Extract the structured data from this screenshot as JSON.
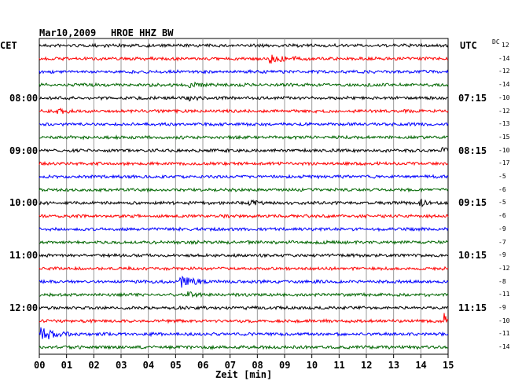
{
  "header": {
    "date": "Mar10,2009",
    "station": "HROE HHZ BW",
    "left_tz": "CET",
    "right_tz": "UTC",
    "dc_label": "DC"
  },
  "chart_data": {
    "type": "line",
    "title": "Mar10,2009   HROE HHZ BW",
    "xlabel": "Zeit [min]",
    "ylabel": "",
    "xlim": [
      0,
      15
    ],
    "x_ticks": [
      "00",
      "01",
      "02",
      "03",
      "04",
      "05",
      "06",
      "07",
      "08",
      "09",
      "10",
      "11",
      "12",
      "13",
      "14",
      "15"
    ],
    "left_time_labels": [
      "08:00",
      "09:00",
      "10:00",
      "11:00",
      "12:00"
    ],
    "right_time_labels": [
      "07:15",
      "08:15",
      "09:15",
      "10:15",
      "11:15"
    ],
    "trace_colors": [
      "#000000",
      "#ff0000",
      "#0000ff",
      "#006600"
    ],
    "grid": true,
    "dc_offsets": [
      12,
      -14,
      -12,
      -14,
      -10,
      -12,
      -13,
      -15,
      -10,
      -17,
      -5,
      -6,
      -5,
      -6,
      -9,
      -7,
      -9,
      -12,
      -8,
      -11,
      -9,
      -10,
      -11,
      -14
    ],
    "events": [
      {
        "trace": 1,
        "minute": 8.5,
        "amplitude": "medium"
      },
      {
        "trace": 3,
        "minute": 5.5,
        "amplitude": "small"
      },
      {
        "trace": 4,
        "minute": 5.5,
        "amplitude": "small"
      },
      {
        "trace": 5,
        "minute": 0.7,
        "amplitude": "small"
      },
      {
        "trace": 8,
        "minute": 14.8,
        "amplitude": "small"
      },
      {
        "trace": 12,
        "minute": 7.7,
        "amplitude": "small"
      },
      {
        "trace": 12,
        "minute": 14.0,
        "amplitude": "small"
      },
      {
        "trace": 18,
        "minute": 5.2,
        "amplitude": "large"
      },
      {
        "trace": 19,
        "minute": 5.5,
        "amplitude": "small"
      },
      {
        "trace": 21,
        "minute": 14.9,
        "amplitude": "spike"
      },
      {
        "trace": 22,
        "minute": 0.1,
        "amplitude": "large"
      }
    ]
  }
}
